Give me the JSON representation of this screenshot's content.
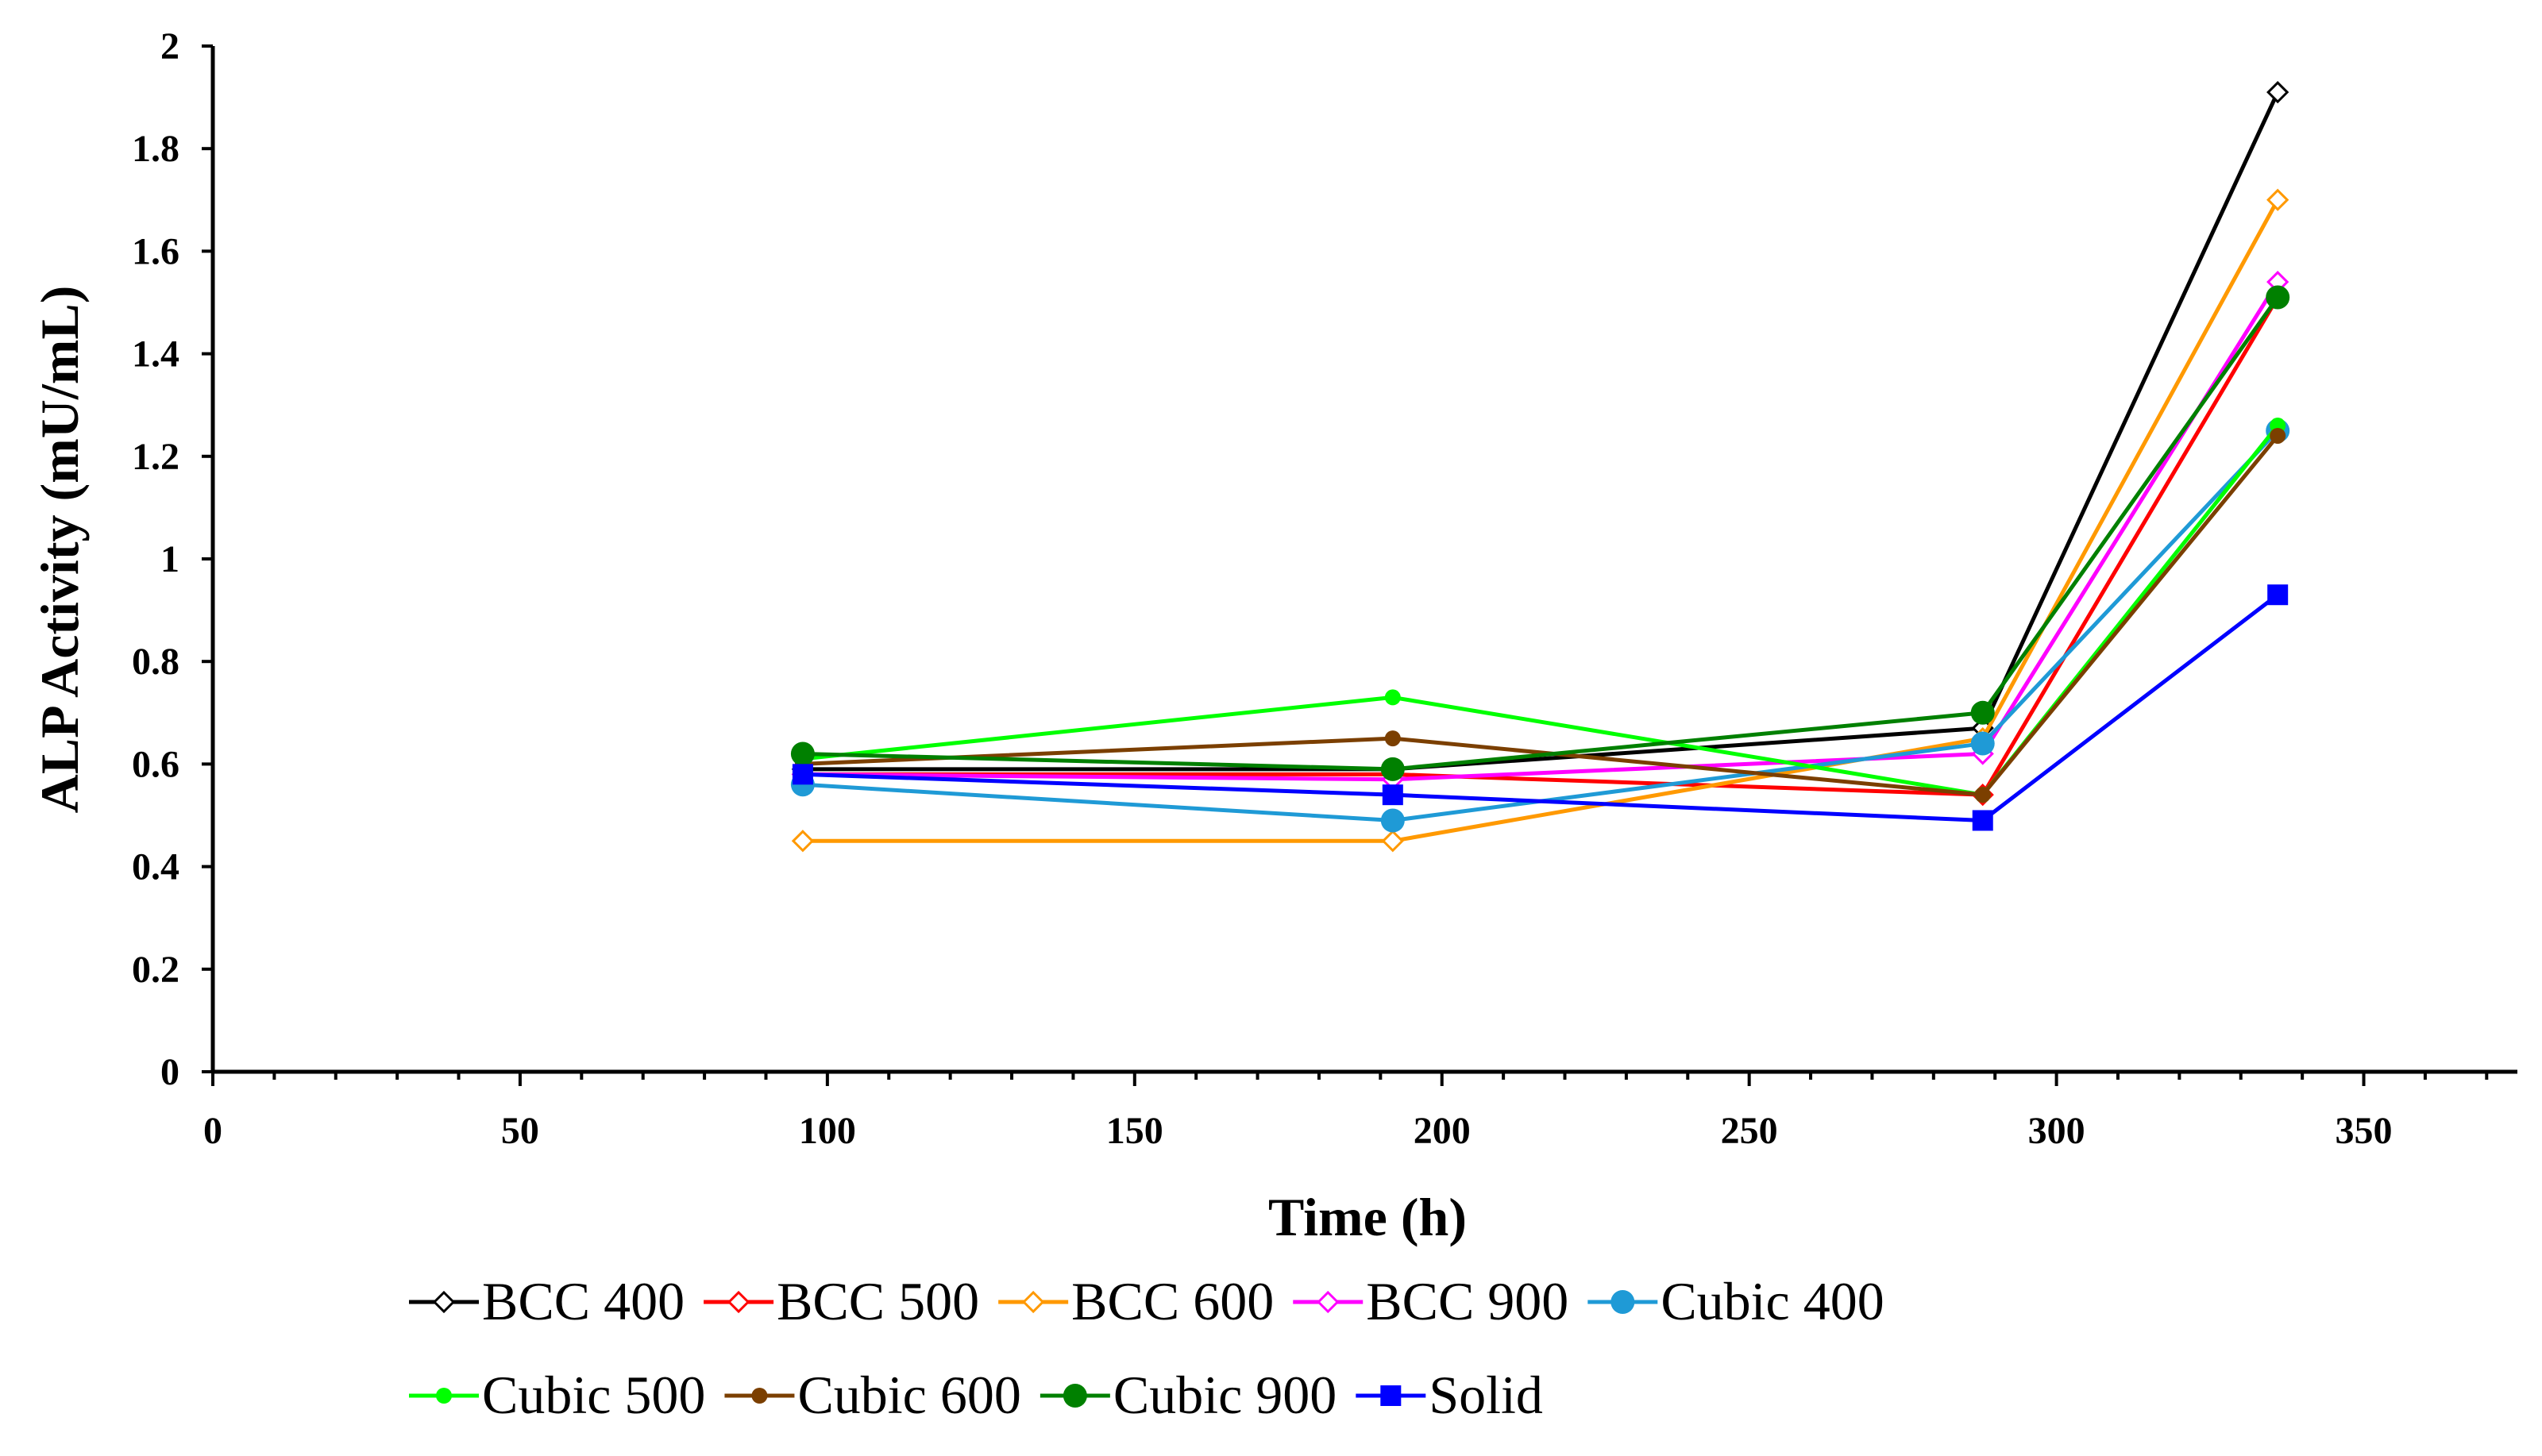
{
  "chart_data": {
    "type": "line",
    "title": "",
    "xlabel": "Time (h)",
    "ylabel": "ALP Activity (mU/mL)",
    "xlim": [
      0,
      375
    ],
    "ylim": [
      0,
      2
    ],
    "x_ticks": [
      "0",
      "50",
      "100",
      "150",
      "200",
      "250",
      "300",
      "350"
    ],
    "y_ticks": [
      "0",
      "0.2",
      "0.4",
      "0.6",
      "0.8",
      "1",
      "1.2",
      "1.4",
      "1.6",
      "1.8",
      "2"
    ],
    "x_tick_values": [
      0,
      50,
      100,
      150,
      200,
      250,
      300,
      350
    ],
    "y_tick_values": [
      0,
      0.2,
      0.4,
      0.6,
      0.8,
      1,
      1.2,
      1.4,
      1.6,
      1.8,
      2
    ],
    "x_minor_step": 10,
    "grid": false,
    "legend_position": "bottom",
    "x": [
      96,
      192,
      288,
      336
    ],
    "series": [
      {
        "name": "BCC 400",
        "color": "#000000",
        "marker": "diamond-open",
        "values": [
          0.59,
          0.59,
          0.67,
          1.91
        ]
      },
      {
        "name": "BCC 500",
        "color": "#ff0000",
        "marker": "diamond-open",
        "values": [
          0.58,
          0.58,
          0.54,
          1.51
        ]
      },
      {
        "name": "BCC 600",
        "color": "#ff9900",
        "marker": "diamond-open",
        "values": [
          0.45,
          0.45,
          0.65,
          1.7
        ]
      },
      {
        "name": "BCC 900",
        "color": "#ff00ff",
        "marker": "diamond-open",
        "values": [
          0.58,
          0.57,
          0.62,
          1.54
        ]
      },
      {
        "name": "Cubic 400",
        "color": "#1f9ad6",
        "marker": "circle",
        "values": [
          0.56,
          0.49,
          0.64,
          1.25
        ]
      },
      {
        "name": "Cubic 500",
        "color": "#00ff00",
        "marker": "circle-small",
        "values": [
          0.61,
          0.73,
          0.54,
          1.26
        ]
      },
      {
        "name": "Cubic 600",
        "color": "#7b3f00",
        "marker": "circle-small",
        "values": [
          0.6,
          0.65,
          0.54,
          1.24
        ]
      },
      {
        "name": "Cubic 900",
        "color": "#008000",
        "marker": "circle",
        "values": [
          0.62,
          0.59,
          0.7,
          1.51
        ]
      },
      {
        "name": "Solid",
        "color": "#0000ff",
        "marker": "square",
        "values": [
          0.58,
          0.54,
          0.49,
          0.93
        ]
      }
    ]
  }
}
